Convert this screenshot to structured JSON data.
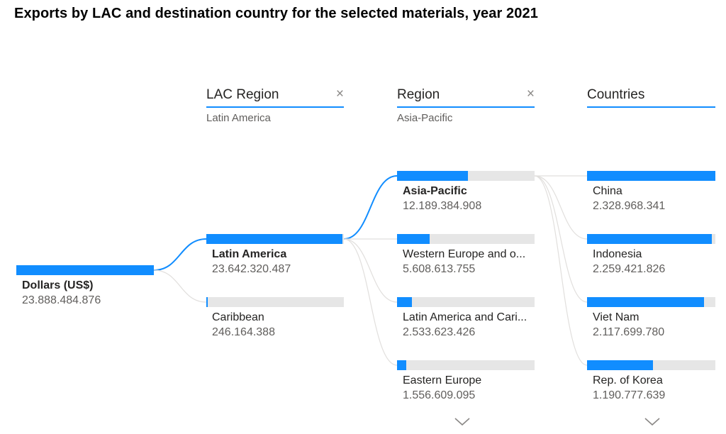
{
  "title": "Exports by LAC and destination country for the selected materials, year 2021",
  "colors": {
    "accent": "#118DFF",
    "track": "#E6E6E6",
    "link": "#E1DFDD"
  },
  "root": {
    "label": "Dollars (US$)",
    "value": "23.888.484.876",
    "amount": 23888484876
  },
  "levels": [
    {
      "header": "LAC Region",
      "filter": "Latin America",
      "close_icon": "×"
    },
    {
      "header": "Region",
      "filter": "Asia-Pacific",
      "close_icon": "×"
    },
    {
      "header": "Countries",
      "filter": ""
    }
  ],
  "chart_data": {
    "type": "decomposition-tree",
    "title": "Exports by LAC and destination country for the selected materials, year 2021",
    "measure": "Dollars (US$)",
    "root_total": 23888484876,
    "levels": [
      {
        "name": "LAC Region",
        "selected": "Latin America",
        "nodes": [
          {
            "label": "Latin America",
            "value": 23642320487,
            "display": "23.642.320.487"
          },
          {
            "label": "Caribbean",
            "value": 246164388,
            "display": "246.164.388"
          }
        ]
      },
      {
        "name": "Region",
        "selected": "Asia-Pacific",
        "nodes": [
          {
            "label": "Asia-Pacific",
            "value": 12189384908,
            "display": "12.189.384.908"
          },
          {
            "label": "Western Europe and o...",
            "value": 5608613755,
            "display": "5.608.613.755"
          },
          {
            "label": "Latin America and Cari...",
            "value": 2533623426,
            "display": "2.533.623.426"
          },
          {
            "label": "Eastern Europe",
            "value": 1556609095,
            "display": "1.556.609.095"
          }
        ]
      },
      {
        "name": "Countries",
        "selected": null,
        "nodes": [
          {
            "label": "China",
            "value": 2328968341,
            "display": "2.328.968.341"
          },
          {
            "label": "Indonesia",
            "value": 2259421826,
            "display": "2.259.421.826"
          },
          {
            "label": "Viet Nam",
            "value": 2117699780,
            "display": "2.117.699.780"
          },
          {
            "label": "Rep. of Korea",
            "value": 1190777639,
            "display": "1.190.777.639"
          }
        ]
      }
    ]
  }
}
